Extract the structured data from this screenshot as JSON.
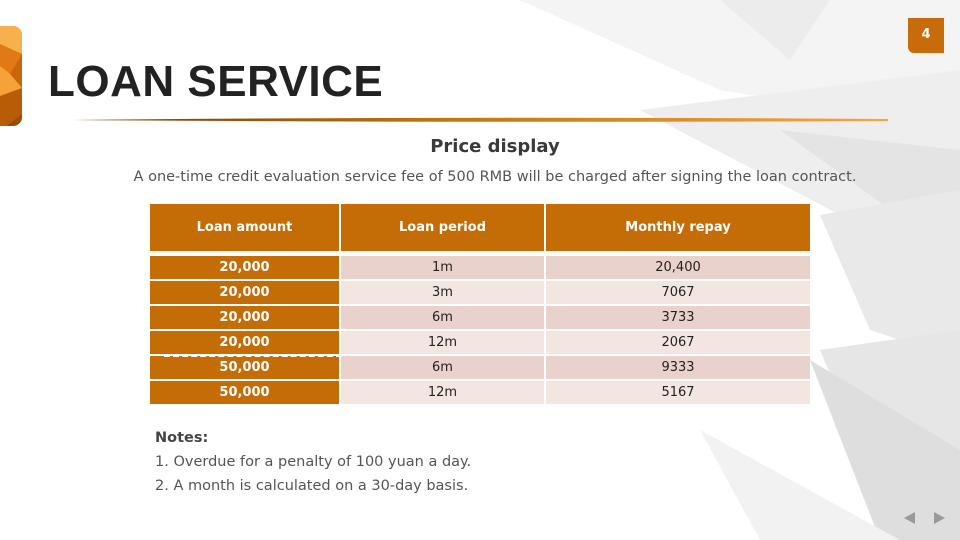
{
  "slide": {
    "number": "4",
    "title": "LOAN SERVICE",
    "subtitle": "Price display",
    "description": "A one-time credit evaluation service fee of 500 RMB will be charged after signing the loan contract."
  },
  "table": {
    "headers": [
      "Loan amount",
      "Loan period",
      "Monthly repay"
    ],
    "rows": [
      [
        "20,000",
        "1m",
        "20,400"
      ],
      [
        "20,000",
        "3m",
        "7067"
      ],
      [
        "20,000",
        "6m",
        "3733"
      ],
      [
        "20,000",
        "12m",
        "2067"
      ],
      [
        "50,000",
        "6m",
        "9333"
      ],
      [
        "50,000",
        "12m",
        "5167"
      ]
    ]
  },
  "notes": {
    "heading": "Notes:",
    "items": [
      "1. Overdue for a penalty of 100 yuan a day.",
      "2. A month is calculated on a 30-day basis."
    ]
  },
  "nav": {
    "prev_icon": "triangle-left-icon",
    "next_icon": "triangle-right-icon"
  },
  "colors": {
    "accent": "#c46c06",
    "row_odd": "#ead2cc",
    "row_even": "#f3e6e1"
  }
}
